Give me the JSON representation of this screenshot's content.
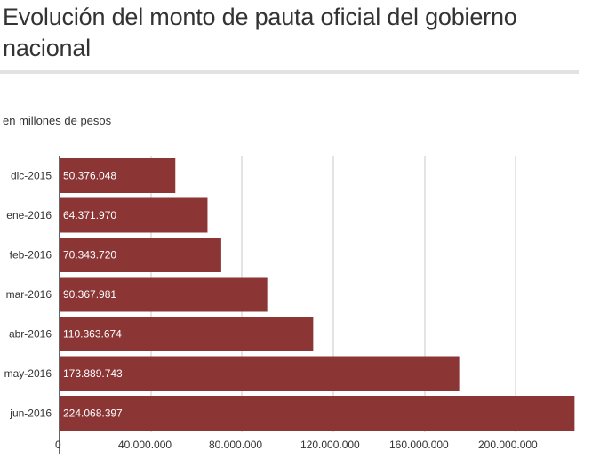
{
  "header": {
    "title": "Evolución del monto de pauta oficial del gobierno nacional",
    "subtitle": "en millones de pesos"
  },
  "colors": {
    "bar": "#8b3535",
    "grid": "#c8c8c8",
    "axis": "#333333"
  },
  "chart_data": {
    "type": "bar",
    "orientation": "horizontal",
    "title": "Evolución del monto de pauta oficial del gobierno nacional",
    "subtitle": "en millones de pesos",
    "categories": [
      "dic-2015",
      "ene-2016",
      "feb-2016",
      "mar-2016",
      "abr-2016",
      "may-2016",
      "jun-2016"
    ],
    "values": [
      50376048,
      64371970,
      70343720,
      90367981,
      110363674,
      173889743,
      224068397
    ],
    "value_labels": [
      "50.376.048",
      "64.371.970",
      "70.343.720",
      "90.367.981",
      "110.363.674",
      "173.889.743",
      "224.068.397"
    ],
    "x_ticks": [
      0,
      40000000,
      80000000,
      120000000,
      160000000,
      200000000
    ],
    "x_tick_labels": [
      "0",
      "40.000.000",
      "80.000.000",
      "120.000.000",
      "160.000.000",
      "200.000.000"
    ],
    "xlim": [
      0,
      225000000
    ],
    "grid": true,
    "legend": "none"
  }
}
